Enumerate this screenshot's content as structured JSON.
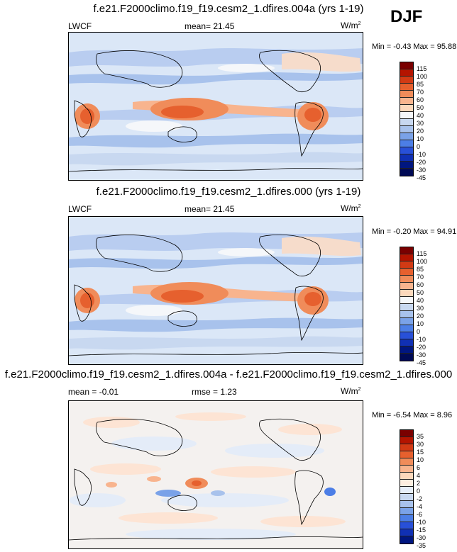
{
  "season": "DJF",
  "panels": [
    {
      "title": "f.e21.F2000climo.f19_f19.cesm2_1.dfires.004a (yrs 1-19)",
      "variable": "LWCF",
      "stat_label": "mean=",
      "stat_value": "21.45",
      "units": "W/m",
      "units_exp": "2",
      "minmax": "Min = -0.43 Max =  95.88",
      "colorbar": {
        "labels": [
          "115",
          "100",
          "85",
          "70",
          "60",
          "50",
          "40",
          "30",
          "20",
          "10",
          "0",
          "-10",
          "-20",
          "-30",
          "-45"
        ],
        "colors": [
          "#7a0000",
          "#b41400",
          "#d23a14",
          "#e6602e",
          "#f08c5a",
          "#f8b48e",
          "#fcd8bc",
          "#f5f7fa",
          "#c8d8f0",
          "#a8c2ec",
          "#7aa2e8",
          "#4c7ee6",
          "#2850d8",
          "#1030b4",
          "#001680",
          "#000a55"
        ]
      }
    },
    {
      "title": "f.e21.F2000climo.f19_f19.cesm2_1.dfires.000 (yrs 1-19)",
      "variable": "LWCF",
      "stat_label": "mean=",
      "stat_value": "21.45",
      "units": "W/m",
      "units_exp": "2",
      "minmax": "Min = -0.20 Max =  94.91",
      "colorbar": {
        "labels": [
          "115",
          "100",
          "85",
          "70",
          "60",
          "50",
          "40",
          "30",
          "20",
          "10",
          "0",
          "-10",
          "-20",
          "-30",
          "-45"
        ],
        "colors": [
          "#7a0000",
          "#b41400",
          "#d23a14",
          "#e6602e",
          "#f08c5a",
          "#f8b48e",
          "#fcd8bc",
          "#f5f7fa",
          "#c8d8f0",
          "#a8c2ec",
          "#7aa2e8",
          "#4c7ee6",
          "#2850d8",
          "#1030b4",
          "#001680",
          "#000a55"
        ]
      }
    },
    {
      "title": "f.e21.F2000climo.f19_f19.cesm2_1.dfires.004a - f.e21.F2000climo.f19_f19.cesm2_1.dfires.000",
      "variable": "",
      "stat_label": "mean =",
      "stat_value": "-0.01",
      "stat2_label": "rmse =",
      "stat2_value": "1.23",
      "units": "W/m",
      "units_exp": "2",
      "minmax": "Min = -6.54 Max =   8.96",
      "colorbar": {
        "labels": [
          "35",
          "30",
          "15",
          "10",
          "6",
          "4",
          "2",
          "0",
          "-2",
          "-4",
          "-6",
          "-10",
          "-15",
          "-30",
          "-35"
        ],
        "colors": [
          "#7a0000",
          "#b41400",
          "#d23a14",
          "#e6602e",
          "#f08c5a",
          "#f8b48e",
          "#fcd8bc",
          "#fdeee0",
          "#e6eef9",
          "#c8d8f0",
          "#a8c2ec",
          "#7aa2e8",
          "#4c7ee6",
          "#2850d8",
          "#1030b4",
          "#001680"
        ]
      }
    }
  ]
}
